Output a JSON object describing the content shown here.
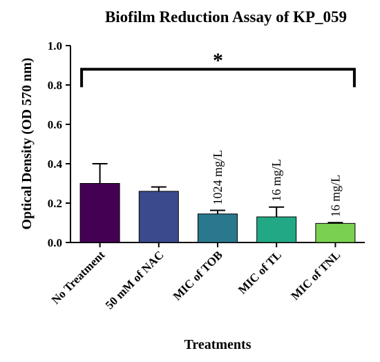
{
  "chart_data": {
    "type": "bar",
    "title": "Biofilm Reduction Assay of KP_059",
    "xlabel": "Treatments",
    "ylabel": "Optical Density (OD 570 nm)",
    "ylim": [
      0,
      1.0
    ],
    "yticks": [
      "0.0",
      "0.2",
      "0.4",
      "0.6",
      "0.8",
      "1.0"
    ],
    "categories": [
      "No Treatment",
      "50 mM of NAC",
      "MIC of TOB",
      "MIC of TL",
      "MIC of TNL"
    ],
    "values": [
      0.3,
      0.26,
      0.145,
      0.13,
      0.097
    ],
    "errors": [
      0.1,
      0.022,
      0.018,
      0.05,
      0.004
    ],
    "colors": [
      "#440154",
      "#3b4a8c",
      "#2a788e",
      "#22a884",
      "#7ad151"
    ],
    "bar_annotations": [
      "",
      "",
      "1024 mg/L",
      "16 mg/L",
      "16 mg/L"
    ],
    "significance": {
      "label": "*",
      "from": 0,
      "to": 4,
      "level": 0.88
    },
    "grid": false,
    "legend": "none"
  }
}
